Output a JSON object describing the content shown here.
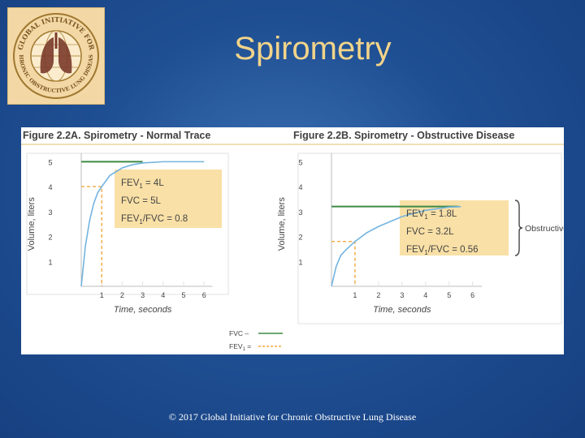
{
  "slide": {
    "title": "Spirometry",
    "footer": "© 2017 Global Initiative for Chronic Obstructive Lung Disease"
  },
  "logo": {
    "text_top": "GLOBAL INITIATIVE FOR",
    "text_bottom": "CHRONIC OBSTRUCTIVE LUNG DISEASE"
  },
  "colors": {
    "fvc": "#3d8a45",
    "fev1": "#f0a93d",
    "curve": "#73b4e0",
    "box": "#f9e0a6",
    "grid": "#e2e2e2"
  },
  "legend": {
    "fvc": "FVC",
    "fev1": "FEV",
    "fev1_sub": "1"
  },
  "chart_data": [
    {
      "type": "line",
      "title": "Figure 2.2A. Spirometry - Normal Trace",
      "xlabel": "Time, seconds",
      "ylabel": "Volume, liters",
      "x_ticks": [
        1,
        2,
        3,
        4,
        5,
        6
      ],
      "y_ticks": [
        1,
        2,
        3,
        4,
        5
      ],
      "xlim": [
        0,
        6.5
      ],
      "ylim": [
        0,
        5.5
      ],
      "curve": {
        "x": [
          0,
          0.2,
          0.4,
          0.6,
          0.8,
          1,
          1.4,
          2,
          2.5,
          3,
          4,
          5,
          6
        ],
        "y": [
          0,
          1.6,
          2.6,
          3.3,
          3.75,
          4.0,
          4.45,
          4.75,
          4.88,
          4.95,
          5.0,
          5.0,
          5.0
        ]
      },
      "fvc": 5,
      "fev1": 4,
      "fev1_time": 1,
      "annotations": [
        {
          "label": "FEV",
          "sub": "1",
          "value": " = 4L"
        },
        {
          "label": "FVC",
          "sub": "",
          "value": " = 5L"
        },
        {
          "label": "FEV",
          "sub": "1",
          "value": "/FVC = 0.8"
        }
      ]
    },
    {
      "type": "line",
      "title": "Figure 2.2B. Spirometry - Obstructive Disease",
      "xlabel": "Time, seconds",
      "ylabel": "Volume, liters",
      "x_ticks": [
        1,
        2,
        3,
        4,
        5,
        6
      ],
      "y_ticks": [
        1,
        2,
        3,
        4,
        5
      ],
      "xlim": [
        0,
        6.5
      ],
      "ylim": [
        0,
        5.5
      ],
      "curve": {
        "x": [
          0,
          0.2,
          0.4,
          0.6,
          1,
          1.5,
          2,
          3,
          4,
          5,
          5.5
        ],
        "y": [
          0,
          0.8,
          1.25,
          1.45,
          1.8,
          2.15,
          2.4,
          2.8,
          3.05,
          3.18,
          3.2
        ]
      },
      "fvc": 3.2,
      "fev1": 1.8,
      "fev1_time": 1,
      "annotations": [
        {
          "label": "FEV",
          "sub": "1",
          "value": " = 1.8L"
        },
        {
          "label": "FVC",
          "sub": "",
          "value": " = 3.2L"
        },
        {
          "label": "FEV",
          "sub": "1",
          "value": "/FVC = 0.56"
        }
      ],
      "bracket_label": "Obstructive"
    }
  ]
}
